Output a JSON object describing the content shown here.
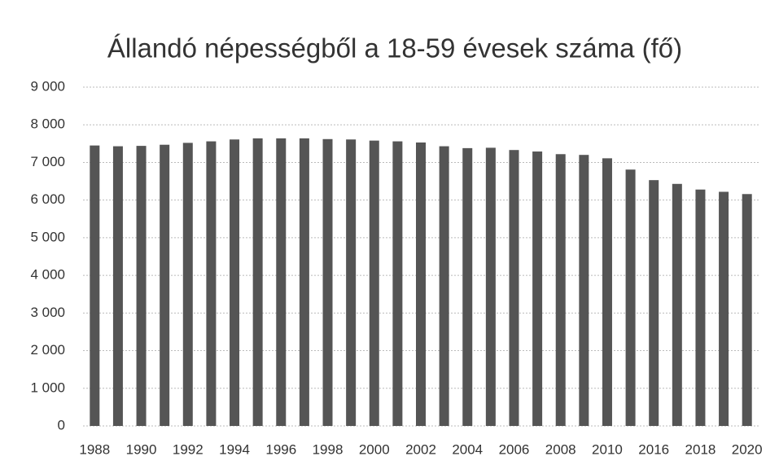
{
  "chart_data": {
    "type": "bar",
    "title": "Állandó népességből a 18-59 évesek száma (fő)",
    "categories": [
      "1988",
      null,
      "1990",
      null,
      "1992",
      null,
      "1994",
      null,
      "1996",
      null,
      "1998",
      null,
      "2000",
      null,
      "2002",
      null,
      "2004",
      null,
      "2006",
      null,
      "2008",
      null,
      "2010",
      null,
      "2016",
      null,
      "2018",
      null,
      "2020"
    ],
    "values": [
      7450,
      7430,
      7440,
      7470,
      7520,
      7560,
      7610,
      7640,
      7640,
      7640,
      7620,
      7610,
      7580,
      7560,
      7530,
      7430,
      7380,
      7390,
      7330,
      7290,
      7220,
      7200,
      7110,
      6810,
      6530,
      6430,
      6280,
      6220,
      6160
    ],
    "color": "#555555",
    "ylim": [
      0,
      9000
    ],
    "yticks": [
      0,
      {
        "value": 1000,
        "label": "1 000"
      },
      {
        "value": 2000,
        "label": "2 000"
      },
      {
        "value": 3000,
        "label": "3 000"
      },
      {
        "value": 4000,
        "label": "4 000"
      },
      {
        "value": 5000,
        "label": "5 000"
      },
      {
        "value": 6000,
        "label": "6 000"
      },
      {
        "value": 7000,
        "label": "7 000"
      },
      {
        "value": 8000,
        "label": "8 000"
      },
      {
        "value": 9000,
        "label": "9 000"
      }
    ],
    "grid": true
  }
}
